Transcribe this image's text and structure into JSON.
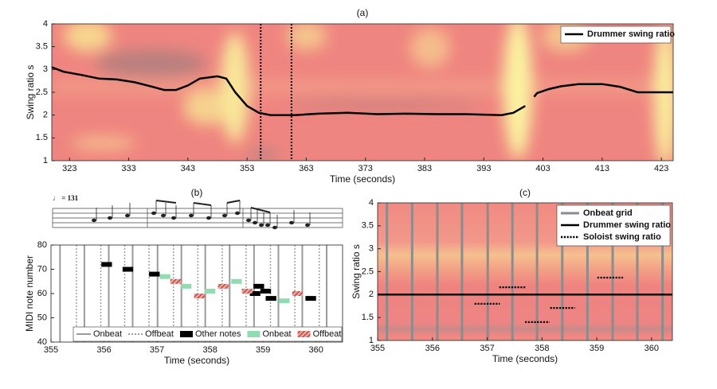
{
  "chart_data": [
    {
      "type": "line",
      "title": "(a)",
      "xlabel": "Time (seconds)",
      "ylabel": "Swing ratio s",
      "xlim": [
        320,
        425
      ],
      "xticks": [
        323,
        333,
        343,
        353,
        363,
        373,
        383,
        393,
        403,
        413,
        423
      ],
      "ylim": [
        1,
        4
      ],
      "yticks": [
        1,
        1.5,
        2,
        2.5,
        3,
        3.5,
        4
      ],
      "vlines": [
        355.3,
        360.5
      ],
      "legend": "upper right",
      "series": [
        {
          "name": "Drummer swing ratio",
          "color": "#000000",
          "style": "solid",
          "x": [
            320,
            322,
            325,
            328,
            331,
            334,
            337,
            339,
            341,
            343,
            345,
            348,
            349.5,
            351,
            353,
            355,
            357,
            361,
            365,
            370,
            375,
            380,
            385,
            390,
            396,
            398,
            400,
            400.5,
            401.5,
            402,
            404,
            406,
            409,
            413,
            416,
            419,
            425
          ],
          "values": [
            3.05,
            2.95,
            2.88,
            2.8,
            2.78,
            2.72,
            2.62,
            2.55,
            2.55,
            2.65,
            2.8,
            2.85,
            2.8,
            2.5,
            2.2,
            2.05,
            2.0,
            2.0,
            2.03,
            2.05,
            2.02,
            2.03,
            2.02,
            2.02,
            2.0,
            2.05,
            2.2,
            null,
            2.4,
            2.48,
            2.57,
            2.63,
            2.68,
            2.68,
            2.62,
            2.5,
            2.5
          ]
        }
      ]
    },
    {
      "type": "pianoroll",
      "title": "(b)",
      "tempo": "♩ = 131",
      "xlabel": "Time (seconds)",
      "ylabel": "MIDI note number",
      "xlim": [
        355,
        360.5
      ],
      "xticks": [
        355,
        356,
        357,
        358,
        359,
        360
      ],
      "ylim": [
        40,
        80
      ],
      "yticks": [
        40,
        50,
        60,
        70,
        80
      ],
      "legend": "lower",
      "beats": [
        {
          "name": "Onbeat",
          "color": "#9a9a9a",
          "style": "solid",
          "x": [
            355.17,
            355.63,
            356.09,
            356.54,
            357.01,
            357.46,
            357.91,
            358.37,
            358.83,
            359.29,
            359.74,
            360.2
          ]
        },
        {
          "name": "Offbeat",
          "color": "#9a9a9a",
          "style": "dotted",
          "x": [
            355.48,
            355.94,
            356.39,
            356.85,
            357.31,
            357.77,
            358.23,
            358.68,
            359.14,
            359.6,
            360.06
          ]
        }
      ],
      "series": [
        {
          "name": "Other notes",
          "color": "#000000",
          "x": [
            355.95,
            356.35,
            356.85,
            358.75,
            358.82,
            358.95,
            359.05,
            359.8
          ],
          "values": [
            72,
            70,
            68,
            60,
            63,
            61,
            58,
            58
          ]
        },
        {
          "name": "Onbeat",
          "color": "#8fdcb0",
          "x": [
            357.05,
            357.45,
            357.9,
            358.4,
            359.3
          ],
          "values": [
            67,
            63,
            61,
            65,
            57
          ]
        },
        {
          "name": "Offbeat",
          "color": "#c0392b",
          "hatch": true,
          "x": [
            357.25,
            357.7,
            358.15,
            358.6,
            359.55
          ],
          "values": [
            65,
            59,
            63,
            61,
            60
          ]
        }
      ]
    },
    {
      "type": "line",
      "title": "(c)",
      "xlabel": "Time (seconds)",
      "ylabel": "Swing ratio s",
      "xlim": [
        355,
        360.38
      ],
      "xticks": [
        355,
        356,
        357,
        358,
        359,
        360
      ],
      "ylim": [
        1,
        4
      ],
      "yticks": [
        1,
        1.5,
        2,
        2.5,
        3,
        3.5,
        4
      ],
      "legend": "upper right",
      "grid_series": {
        "name": "Onbeat grid",
        "color": "#8c8c8c",
        "x": [
          355.17,
          355.63,
          356.09,
          356.54,
          357.01,
          357.46,
          357.91,
          358.37,
          358.83,
          359.29,
          359.74,
          360.2
        ]
      },
      "series": [
        {
          "name": "Drummer swing ratio",
          "color": "#000000",
          "style": "solid",
          "x": [
            355,
            360.38
          ],
          "values": [
            2,
            2
          ]
        },
        {
          "name": "Soloist swing ratio",
          "color": "#000000",
          "style": "dotted",
          "x": [
            356.77,
            357.23,
            357.23,
            357.22,
            357.7,
            357.7,
            357.69,
            358.14,
            358.14,
            358.15,
            358.6,
            358.6,
            359.01,
            359.48
          ],
          "values": [
            1.8,
            1.8,
            null,
            2.16,
            2.16,
            null,
            1.4,
            1.4,
            null,
            1.71,
            1.71,
            null,
            2.37,
            2.37
          ]
        }
      ]
    }
  ]
}
